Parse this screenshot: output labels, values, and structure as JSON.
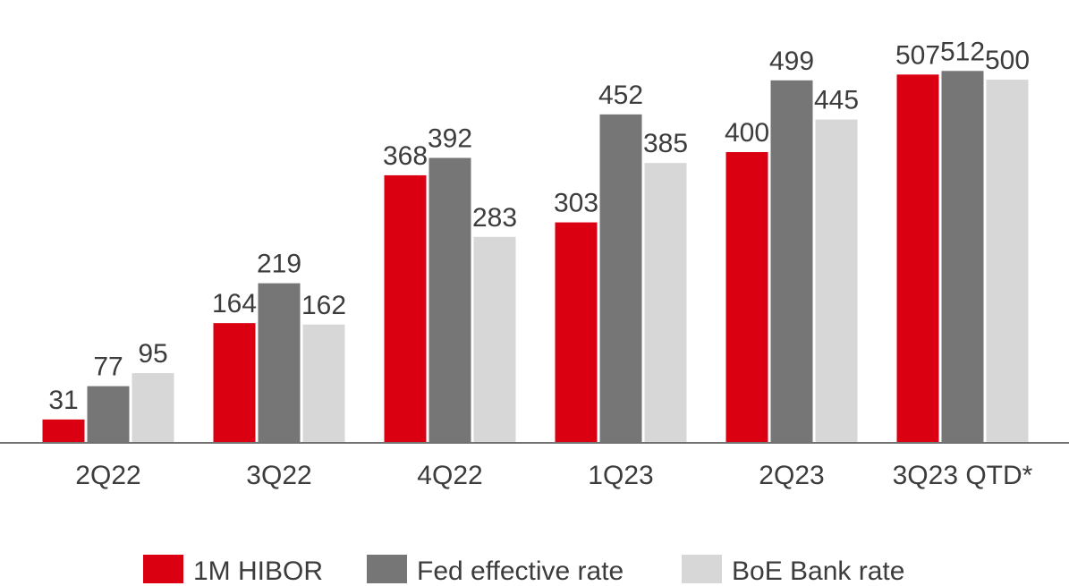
{
  "chart_data": {
    "type": "bar",
    "categories": [
      "2Q22",
      "3Q22",
      "4Q22",
      "1Q23",
      "2Q23",
      "3Q23 QTD*"
    ],
    "series": [
      {
        "name": "1M HIBOR",
        "color": "#db0011",
        "values": [
          31,
          164,
          368,
          303,
          400,
          507
        ]
      },
      {
        "name": "Fed effective rate",
        "color": "#767676",
        "values": [
          77,
          219,
          392,
          452,
          499,
          512
        ]
      },
      {
        "name": "BoE Bank rate",
        "color": "#d7d7d7",
        "values": [
          95,
          162,
          283,
          385,
          445,
          500
        ]
      }
    ],
    "legend": "bottom"
  }
}
